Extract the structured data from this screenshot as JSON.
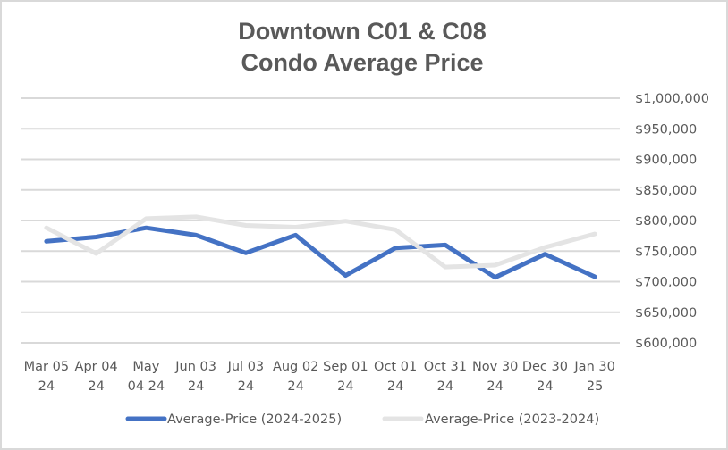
{
  "chart_data": {
    "type": "line",
    "title": [
      "Downtown C01 & C08",
      "Condo Average Price"
    ],
    "xlabel": "",
    "ylabel": "",
    "categories": [
      [
        "Mar 05",
        "24"
      ],
      [
        "Apr 04",
        "24"
      ],
      [
        "May",
        "04 24"
      ],
      [
        "Jun 03",
        "24"
      ],
      [
        "Jul 03",
        "24"
      ],
      [
        "Aug 02",
        "24"
      ],
      [
        "Sep 01",
        "24"
      ],
      [
        "Oct 01",
        "24"
      ],
      [
        "Oct 31",
        "24"
      ],
      [
        "Nov 30",
        "24"
      ],
      [
        "Dec 30",
        "24"
      ],
      [
        "Jan 30",
        "25"
      ]
    ],
    "series": [
      {
        "name": "Average-Price (2024-2025)",
        "color": "#4472c4",
        "values": [
          766000,
          773000,
          788000,
          776000,
          747000,
          776000,
          710000,
          755000,
          760000,
          707000,
          745000,
          708000
        ]
      },
      {
        "name": "Average-Price (2023-2024)",
        "color": "#e4e4e4",
        "values": [
          788000,
          746000,
          803000,
          806000,
          792000,
          789000,
          799000,
          785000,
          724000,
          727000,
          756000,
          778000
        ]
      }
    ],
    "ylim": [
      600000,
      1000000
    ],
    "yticks": [
      1000000,
      950000,
      900000,
      850000,
      800000,
      750000,
      700000,
      650000,
      600000
    ],
    "ytick_labels": [
      "$1,000,000",
      "$950,000",
      "$900,000",
      "$850,000",
      "$800,000",
      "$750,000",
      "$700,000",
      "$650,000",
      "$600,000"
    ],
    "y_axis_side": "right",
    "grid": true,
    "legend_position": "bottom"
  }
}
